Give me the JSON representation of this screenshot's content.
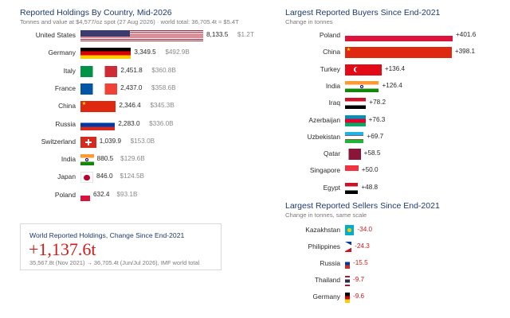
{
  "left_panel": {
    "title": "Reported Holdings By Country, Mid-2026",
    "subtitle": "Tonnes and value at $4,577/oz spot (27 Aug 2026) · world total: 36,705.4t ≈ $5.4T"
  },
  "buyers_panel": {
    "title": "Largest Reported Buyers Since End-2021",
    "subtitle": "Change in tonnes"
  },
  "sellers_panel": {
    "title": "Largest Reported Sellers Since End-2021",
    "subtitle": "Change in tonnes, same scale"
  },
  "summary_card": {
    "title": "World Reported Holdings, Change Since End-2021",
    "value": "+1,137.6t",
    "note": "35,567.8t (Nov 2021) → 36,705.4t (Jun/Jul 2026), IMF world total"
  },
  "chart_data": [
    {
      "type": "bar",
      "orientation": "horizontal",
      "title": "Reported Holdings By Country, Mid-2026",
      "subtitle": "Tonnes and value at $4,577/oz spot (27 Aug 2026) · world total: 36,705.4t ≈ $5.4T",
      "unit": "tonnes",
      "categories": [
        "United States",
        "Germany",
        "Italy",
        "France",
        "China",
        "Russia",
        "Switzerland",
        "India",
        "Japan",
        "Poland"
      ],
      "values": [
        8133.5,
        3349.5,
        2451.8,
        2437.0,
        2346.4,
        2283.0,
        1039.9,
        880.5,
        846.0,
        632.4
      ],
      "value_labels": [
        "8,133.5",
        "3,349.5",
        "2,451.8",
        "2,437.0",
        "2,346.4",
        "2,283.0",
        "1,039.9",
        "880.5",
        "846.0",
        "632.4"
      ],
      "usd_labels": [
        "$1.2T",
        "$492.9B",
        "$360.8B",
        "$358.6B",
        "$345.3B",
        "$336.0B",
        "$153.0B",
        "$129.6B",
        "$124.5B",
        "$93.1B"
      ],
      "flags": [
        "flag-us",
        "flag-de",
        "flag-it",
        "flag-fr",
        "flag-cn",
        "flag-ru",
        "flag-ch",
        "flag-in",
        "flag-jp",
        "flag-pl"
      ],
      "xlim": [
        0,
        8133.5
      ],
      "grid": false,
      "legend": "none"
    },
    {
      "type": "bar",
      "orientation": "horizontal",
      "title": "Largest Reported Buyers Since End-2021",
      "subtitle": "Change in tonnes",
      "unit": "tonnes",
      "categories": [
        "Poland",
        "China",
        "Turkey",
        "India",
        "Iraq",
        "Azerbaijan",
        "Uzbekistan",
        "Qatar",
        "Singapore",
        "Egypt"
      ],
      "values": [
        401.6,
        398.1,
        136.4,
        126.4,
        78.2,
        76.3,
        69.7,
        58.5,
        50.0,
        48.8
      ],
      "value_labels": [
        "+401.6",
        "+398.1",
        "+136.4",
        "+126.4",
        "+78.2",
        "+76.3",
        "+69.7",
        "+58.5",
        "+50.0",
        "+48.8"
      ],
      "flags": [
        "flag-pl",
        "flag-cn",
        "flag-tr",
        "flag-in",
        "flag-iq",
        "flag-az",
        "flag-uz",
        "flag-qa",
        "flag-sg",
        "flag-eg"
      ],
      "xlim": [
        0,
        401.6
      ],
      "grid": false,
      "legend": "none"
    },
    {
      "type": "bar",
      "orientation": "horizontal",
      "title": "Largest Reported Sellers Since End-2021",
      "subtitle": "Change in tonnes, same scale",
      "unit": "tonnes",
      "categories": [
        "Kazakhstan",
        "Philippines",
        "Russia",
        "Thailand",
        "Germany"
      ],
      "values": [
        -34.0,
        -24.3,
        -15.5,
        -9.7,
        -9.6
      ],
      "value_labels": [
        "-34.0",
        "-24.3",
        "-15.5",
        "-9.7",
        "-9.6"
      ],
      "flags": [
        "flag-kz",
        "flag-ph",
        "flag-ru",
        "flag-th",
        "flag-de"
      ],
      "xlim": [
        0,
        401.6
      ],
      "grid": false,
      "legend": "none"
    }
  ],
  "colors": {
    "title": "#1d3a6e",
    "positive_text": "#2a2a2a",
    "negative_text": "#d11a1a",
    "muted_text": "#8a8a8a"
  }
}
